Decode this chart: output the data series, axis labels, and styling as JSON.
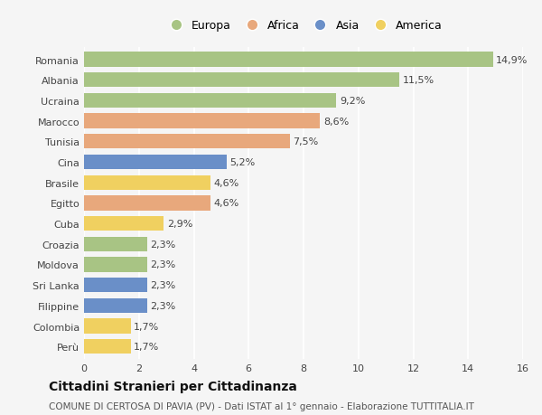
{
  "countries": [
    "Romania",
    "Albania",
    "Ucraina",
    "Marocco",
    "Tunisia",
    "Cina",
    "Brasile",
    "Egitto",
    "Cuba",
    "Croazia",
    "Moldova",
    "Sri Lanka",
    "Filippine",
    "Colombia",
    "Perù"
  ],
  "values": [
    14.9,
    11.5,
    9.2,
    8.6,
    7.5,
    5.2,
    4.6,
    4.6,
    2.9,
    2.3,
    2.3,
    2.3,
    2.3,
    1.7,
    1.7
  ],
  "continents": [
    "Europa",
    "Europa",
    "Europa",
    "Africa",
    "Africa",
    "Asia",
    "America",
    "Africa",
    "America",
    "Europa",
    "Europa",
    "Asia",
    "Asia",
    "America",
    "America"
  ],
  "colors": {
    "Europa": "#a8c484",
    "Africa": "#e8a87c",
    "Asia": "#6a8fc8",
    "America": "#f0d060"
  },
  "xlim": [
    0,
    16
  ],
  "xticks": [
    0,
    2,
    4,
    6,
    8,
    10,
    12,
    14,
    16
  ],
  "title": "Cittadini Stranieri per Cittadinanza",
  "subtitle": "COMUNE DI CERTOSA DI PAVIA (PV) - Dati ISTAT al 1° gennaio - Elaborazione TUTTITALIA.IT",
  "background_color": "#f5f5f5",
  "bar_height": 0.72,
  "grid_color": "#ffffff",
  "label_fontsize": 8,
  "tick_fontsize": 8,
  "title_fontsize": 10,
  "subtitle_fontsize": 7.5,
  "legend_order": [
    "Europa",
    "Africa",
    "Asia",
    "America"
  ]
}
